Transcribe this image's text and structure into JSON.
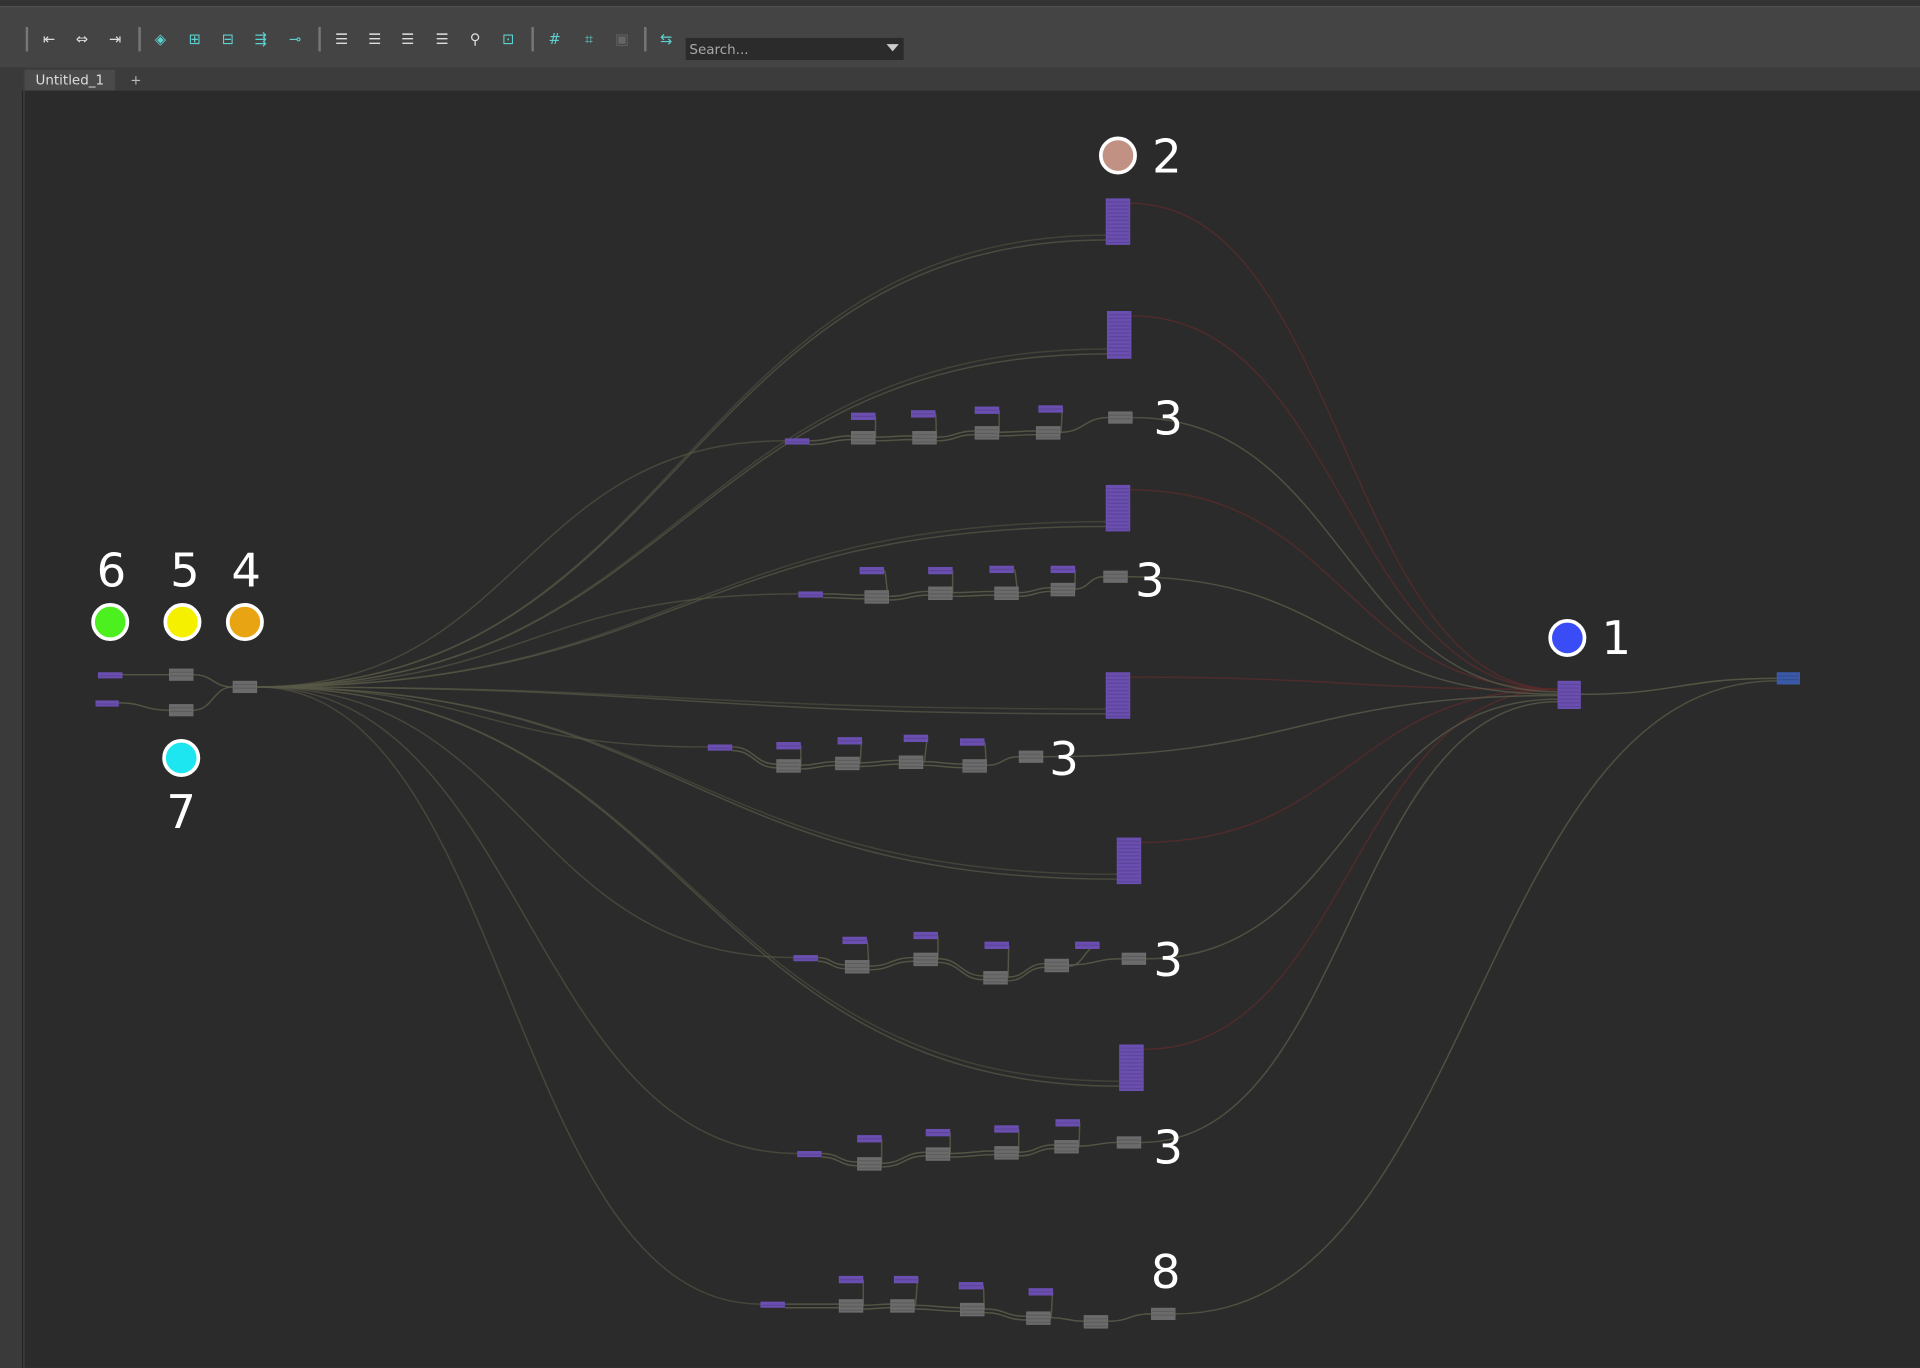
{
  "toolbar": {
    "icons": [
      "graph-input-icon",
      "graph-input-output-icon",
      "graph-output-icon",
      "frame-all-icon",
      "add-selected-icon",
      "remove-selected-icon",
      "rearrange-icon",
      "connect-nodes-icon",
      "simple-view-icon",
      "connected-view-icon",
      "full-view-icon",
      "custom-view-icon",
      "search-nodes-icon",
      "clear-graph-icon",
      "grid-icon",
      "snap-to-grid-icon",
      "screenshot-icon",
      "toggle-swatches-icon"
    ],
    "search_placeholder": "Search..."
  },
  "tabs": [
    {
      "label": "Untitled_1"
    },
    {
      "label": "+"
    }
  ],
  "annotations": [
    {
      "number": "1",
      "color": "#3a4cf5"
    },
    {
      "number": "2",
      "color": "#c19284"
    },
    {
      "number": "3"
    },
    {
      "number": "3"
    },
    {
      "number": "3"
    },
    {
      "number": "3"
    },
    {
      "number": "3"
    },
    {
      "number": "4",
      "color": "#e8a412"
    },
    {
      "number": "5",
      "color": "#f5ef00"
    },
    {
      "number": "6",
      "color": "#4cf01e"
    },
    {
      "number": "7",
      "color": "#1ee6f0"
    },
    {
      "number": "8"
    }
  ],
  "colors": {
    "node_shader": "#6a4fb0",
    "node_utility": "#6b6b6b",
    "node_output": "#3a5aa8",
    "edge": "#5a5a48",
    "edge_red": "#5a2c2c"
  }
}
